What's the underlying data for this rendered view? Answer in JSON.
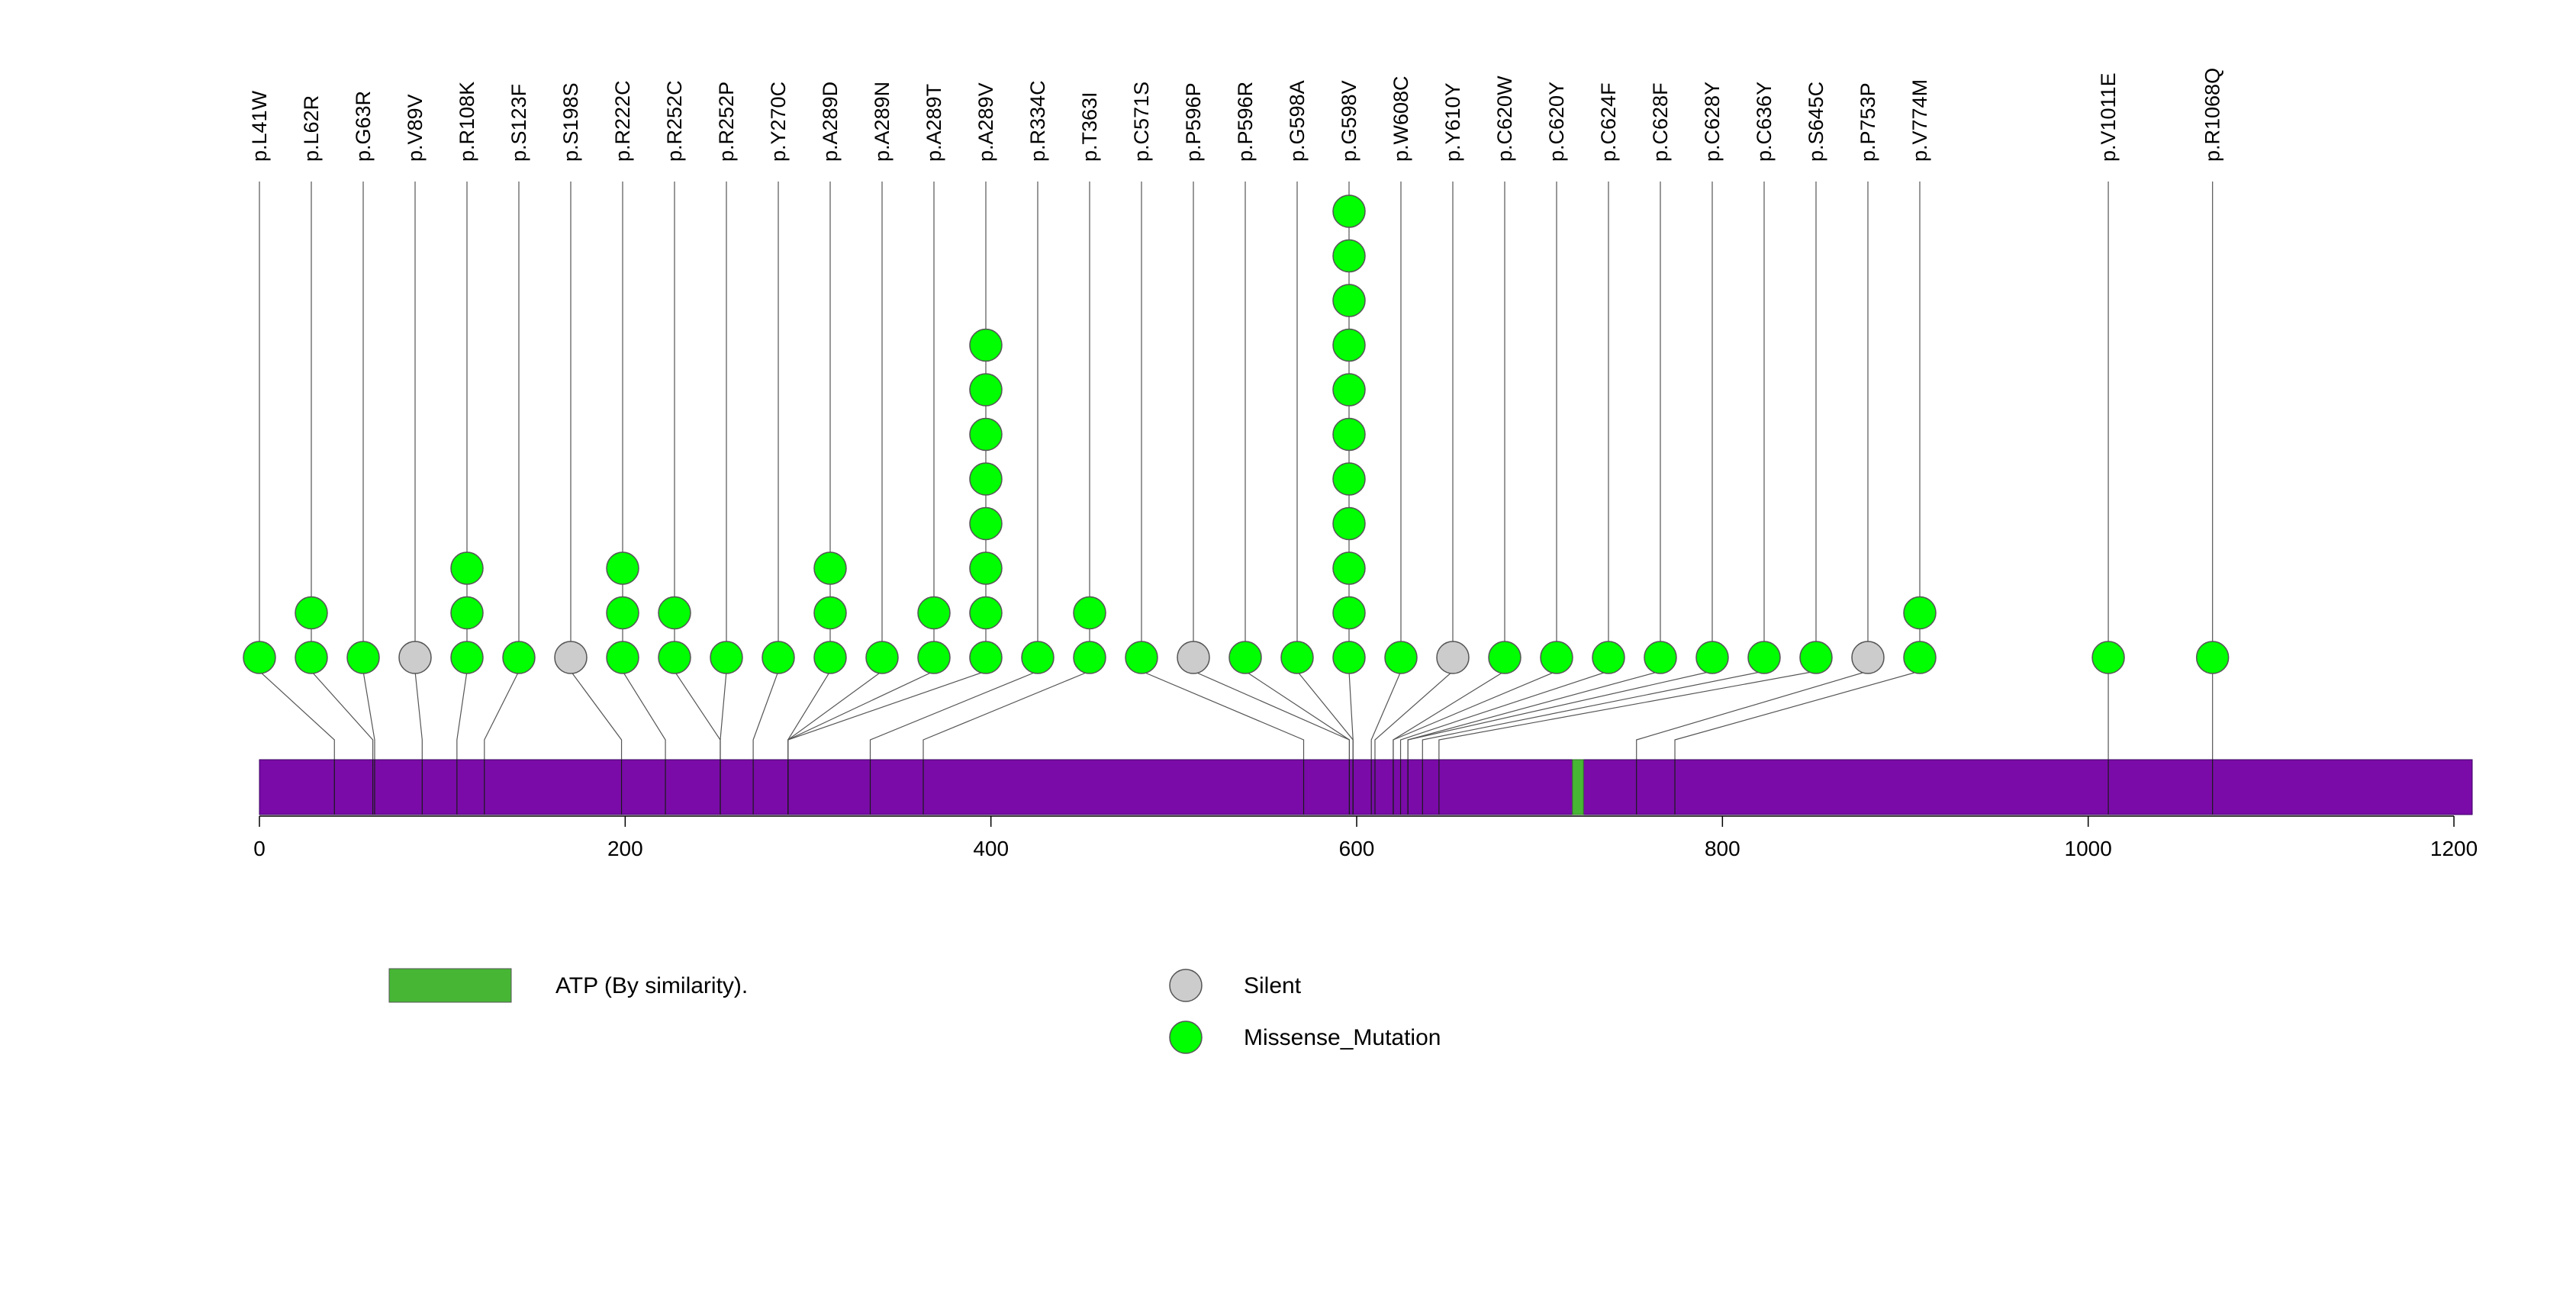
{
  "chart_data": {
    "type": "lollipop",
    "protein_length": 1210,
    "axis": {
      "ticks": [
        0,
        200,
        400,
        600,
        800,
        1000,
        1200
      ]
    },
    "colors": {
      "protein": "#7a0ba8",
      "protein_border": "#3a0060",
      "domain": "#47b635",
      "missense": "#00ff00",
      "silent": "#cccccc",
      "stem": "#555555"
    },
    "domains": [
      {
        "label": "ATP (By similarity).",
        "start": 718,
        "end": 724
      }
    ],
    "mutations": [
      {
        "label": "p.L41W",
        "position": 41,
        "count": 1,
        "type": "Missense_Mutation"
      },
      {
        "label": "p.L62R",
        "position": 62,
        "count": 2,
        "type": "Missense_Mutation"
      },
      {
        "label": "p.G63R",
        "position": 63,
        "count": 1,
        "type": "Missense_Mutation"
      },
      {
        "label": "p.V89V",
        "position": 89,
        "count": 1,
        "type": "Silent"
      },
      {
        "label": "p.R108K",
        "position": 108,
        "count": 3,
        "type": "Missense_Mutation"
      },
      {
        "label": "p.S123F",
        "position": 123,
        "count": 1,
        "type": "Missense_Mutation"
      },
      {
        "label": "p.S198S",
        "position": 198,
        "count": 1,
        "type": "Silent"
      },
      {
        "label": "p.R222C",
        "position": 222,
        "count": 3,
        "type": "Missense_Mutation"
      },
      {
        "label": "p.R252C",
        "position": 252,
        "count": 2,
        "type": "Missense_Mutation"
      },
      {
        "label": "p.R252P",
        "position": 252,
        "count": 1,
        "type": "Missense_Mutation"
      },
      {
        "label": "p.Y270C",
        "position": 270,
        "count": 1,
        "type": "Missense_Mutation"
      },
      {
        "label": "p.A289D",
        "position": 289,
        "count": 3,
        "type": "Missense_Mutation"
      },
      {
        "label": "p.A289N",
        "position": 289,
        "count": 1,
        "type": "Missense_Mutation"
      },
      {
        "label": "p.A289T",
        "position": 289,
        "count": 2,
        "type": "Missense_Mutation"
      },
      {
        "label": "p.A289V",
        "position": 289,
        "count": 8,
        "type": "Missense_Mutation"
      },
      {
        "label": "p.R334C",
        "position": 334,
        "count": 1,
        "type": "Missense_Mutation"
      },
      {
        "label": "p.T363I",
        "position": 363,
        "count": 2,
        "type": "Missense_Mutation"
      },
      {
        "label": "p.C571S",
        "position": 571,
        "count": 1,
        "type": "Missense_Mutation"
      },
      {
        "label": "p.P596P",
        "position": 596,
        "count": 1,
        "type": "Silent"
      },
      {
        "label": "p.P596R",
        "position": 596,
        "count": 1,
        "type": "Missense_Mutation"
      },
      {
        "label": "p.G598A",
        "position": 598,
        "count": 1,
        "type": "Missense_Mutation"
      },
      {
        "label": "p.G598V",
        "position": 598,
        "count": 11,
        "type": "Missense_Mutation"
      },
      {
        "label": "p.W608C",
        "position": 608,
        "count": 1,
        "type": "Missense_Mutation"
      },
      {
        "label": "p.Y610Y",
        "position": 610,
        "count": 1,
        "type": "Silent"
      },
      {
        "label": "p.C620W",
        "position": 620,
        "count": 1,
        "type": "Missense_Mutation"
      },
      {
        "label": "p.C620Y",
        "position": 620,
        "count": 1,
        "type": "Missense_Mutation"
      },
      {
        "label": "p.C624F",
        "position": 624,
        "count": 1,
        "type": "Missense_Mutation"
      },
      {
        "label": "p.C628F",
        "position": 628,
        "count": 1,
        "type": "Missense_Mutation"
      },
      {
        "label": "p.C628Y",
        "position": 628,
        "count": 1,
        "type": "Missense_Mutation"
      },
      {
        "label": "p.C636Y",
        "position": 636,
        "count": 1,
        "type": "Missense_Mutation"
      },
      {
        "label": "p.S645C",
        "position": 645,
        "count": 1,
        "type": "Missense_Mutation"
      },
      {
        "label": "p.P753P",
        "position": 753,
        "count": 1,
        "type": "Silent"
      },
      {
        "label": "p.V774M",
        "position": 774,
        "count": 2,
        "type": "Missense_Mutation"
      },
      {
        "label": "p.V1011E",
        "position": 1011,
        "count": 1,
        "type": "Missense_Mutation"
      },
      {
        "label": "p.R1068Q",
        "position": 1068,
        "count": 1,
        "type": "Missense_Mutation"
      }
    ],
    "legend": {
      "domain_entry": "ATP (By similarity).",
      "silent": "Silent",
      "missense": "Missense_Mutation"
    }
  }
}
